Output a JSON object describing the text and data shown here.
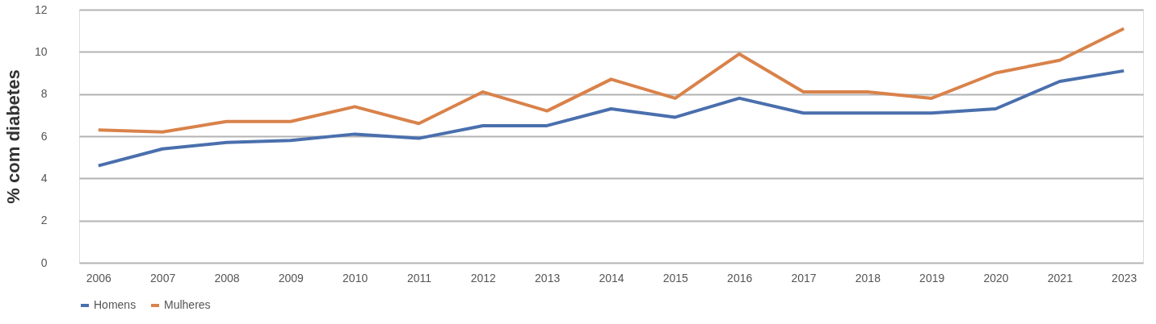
{
  "chart_data": {
    "type": "line",
    "ylabel": "% com diabetes",
    "categories": [
      "2006",
      "2007",
      "2008",
      "2009",
      "2010",
      "2011",
      "2012",
      "2013",
      "2014",
      "2015",
      "2016",
      "2017",
      "2018",
      "2019",
      "2020",
      "2021",
      "2023"
    ],
    "series": [
      {
        "name": "Homens",
        "color": "#4a6fad",
        "values": [
          4.6,
          5.4,
          5.7,
          5.8,
          6.1,
          5.9,
          6.5,
          6.5,
          7.3,
          6.9,
          7.8,
          7.1,
          7.1,
          7.1,
          7.3,
          8.6,
          9.1
        ]
      },
      {
        "name": "Mulheres",
        "color": "#d9824a",
        "values": [
          6.3,
          6.2,
          6.7,
          6.7,
          7.4,
          6.6,
          8.1,
          7.2,
          8.7,
          7.8,
          9.9,
          8.1,
          8.1,
          7.8,
          9.0,
          9.6,
          11.1
        ]
      }
    ],
    "ylim": [
      0,
      12
    ],
    "yticks": [
      0,
      2,
      4,
      6,
      8,
      10,
      12
    ],
    "grid": "y",
    "legend": "bottom",
    "marker": "none",
    "line_style": "solid"
  }
}
